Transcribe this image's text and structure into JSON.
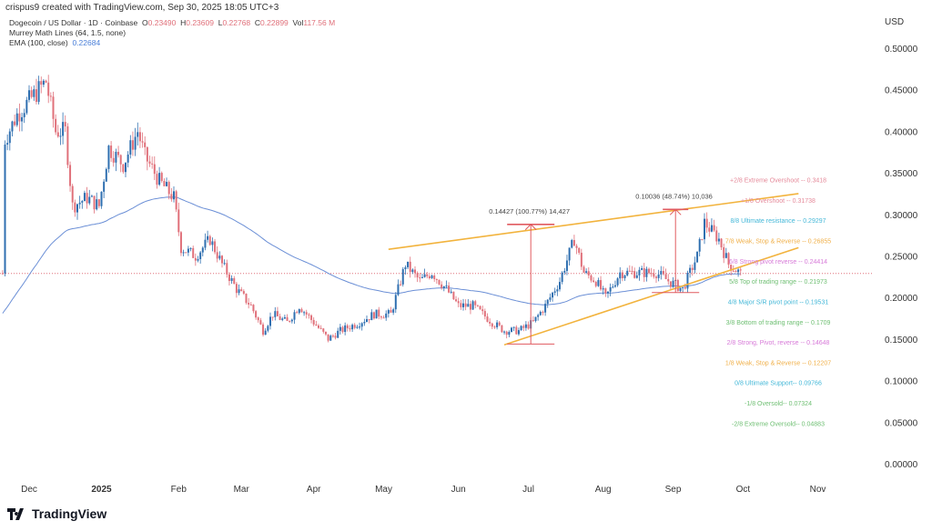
{
  "header": {
    "created": "crispus9 created with TradingView.com, Sep 30, 2025 18:05 UTC+3"
  },
  "legend": {
    "symbol": "Dogecoin / US Dollar · 1D · Coinbase",
    "o_label": "O",
    "o": "0.23490",
    "h_label": "H",
    "h": "0.23609",
    "l_label": "L",
    "l": "0.22768",
    "c_label": "C",
    "c": "0.22899",
    "vol_label": "Vol",
    "vol": "117.56 M",
    "murrey": "Murrey Math Lines (64, 1.5, none)",
    "ema_label": "EMA (100, close)",
    "ema": "0.22684"
  },
  "axis": {
    "currency": "USD"
  },
  "logo": "TradingView",
  "colors": {
    "up": "#2f6fb0",
    "down": "#e0707a",
    "ema": "#6b8fd6",
    "wedge": "#f2b33d",
    "measure": "#e05a5f"
  },
  "chart_data": {
    "type": "candlestick",
    "title": "Dogecoin / US Dollar · 1D · Coinbase",
    "ylim": [
      0,
      0.5
    ],
    "yticks": [
      "0.50000",
      "0.45000",
      "0.40000",
      "0.35000",
      "0.30000",
      "0.25000",
      "0.20000",
      "0.15000",
      "0.10000",
      "0.05000",
      "0.00000"
    ],
    "xticks": [
      {
        "label": "Dec",
        "day": 0
      },
      {
        "label": "2025",
        "day": 30,
        "bold": true
      },
      {
        "label": "Feb",
        "day": 62
      },
      {
        "label": "Mar",
        "day": 88
      },
      {
        "label": "Apr",
        "day": 118
      },
      {
        "label": "May",
        "day": 147
      },
      {
        "label": "Jun",
        "day": 178
      },
      {
        "label": "Jul",
        "day": 207
      },
      {
        "label": "Aug",
        "day": 238
      },
      {
        "label": "Sep",
        "day": 267
      },
      {
        "label": "Oct",
        "day": 296
      },
      {
        "label": "Nov",
        "day": 327
      }
    ],
    "x_unit": "days since 2024-12-01",
    "close_path": [
      [
        -10,
        0.39
      ],
      [
        -5,
        0.42
      ],
      [
        1,
        0.44
      ],
      [
        7,
        0.46
      ],
      [
        11,
        0.4
      ],
      [
        15,
        0.4
      ],
      [
        18,
        0.31
      ],
      [
        24,
        0.32
      ],
      [
        29,
        0.31
      ],
      [
        33,
        0.38
      ],
      [
        39,
        0.36
      ],
      [
        45,
        0.4
      ],
      [
        48,
        0.37
      ],
      [
        54,
        0.34
      ],
      [
        60,
        0.32
      ],
      [
        63,
        0.26
      ],
      [
        69,
        0.25
      ],
      [
        75,
        0.27
      ],
      [
        80,
        0.24
      ],
      [
        86,
        0.21
      ],
      [
        92,
        0.19
      ],
      [
        97,
        0.16
      ],
      [
        101,
        0.18
      ],
      [
        107,
        0.17
      ],
      [
        112,
        0.19
      ],
      [
        118,
        0.17
      ],
      [
        124,
        0.15
      ],
      [
        129,
        0.16
      ],
      [
        137,
        0.17
      ],
      [
        143,
        0.18
      ],
      [
        150,
        0.18
      ],
      [
        156,
        0.24
      ],
      [
        162,
        0.22
      ],
      [
        167,
        0.23
      ],
      [
        173,
        0.21
      ],
      [
        178,
        0.19
      ],
      [
        184,
        0.19
      ],
      [
        192,
        0.17
      ],
      [
        197,
        0.16
      ],
      [
        203,
        0.16
      ],
      [
        209,
        0.17
      ],
      [
        214,
        0.19
      ],
      [
        220,
        0.22
      ],
      [
        226,
        0.27
      ],
      [
        230,
        0.23
      ],
      [
        235,
        0.22
      ],
      [
        239,
        0.2
      ],
      [
        245,
        0.23
      ],
      [
        252,
        0.23
      ],
      [
        260,
        0.23
      ],
      [
        265,
        0.22
      ],
      [
        271,
        0.21
      ],
      [
        277,
        0.25
      ],
      [
        280,
        0.29
      ],
      [
        286,
        0.27
      ],
      [
        290,
        0.24
      ],
      [
        295,
        0.229
      ]
    ],
    "current_price": 0.229,
    "wedge": {
      "upper": [
        [
          149,
          0.258
        ],
        [
          319,
          0.325
        ]
      ],
      "lower": [
        [
          197,
          0.143
        ],
        [
          319,
          0.26
        ]
      ]
    },
    "measurements": [
      {
        "day": 208,
        "from": 0.144,
        "to": 0.288,
        "label": "0.14427 (100.77%) 14,427"
      },
      {
        "day": 268,
        "from": 0.206,
        "to": 0.306,
        "label": "0.10036 (48.74%) 10,036"
      }
    ],
    "murrey_levels": [
      {
        "label": "+2/8 Extreme Overshoot --  0.3418",
        "price": 0.3418,
        "color": "#e58a9a"
      },
      {
        "label": "+1/8 Overshoot --  0.31738",
        "price": 0.31738,
        "color": "#e58a9a"
      },
      {
        "label": "8/8 Ultimate resistance --  0.29297",
        "price": 0.29297,
        "color": "#45b8d8"
      },
      {
        "label": "7/8 Weak, Stop & Reverse --  0.26855",
        "price": 0.26855,
        "color": "#f0b04a"
      },
      {
        "label": "6/8 Strong pivot reverse --  0.24414",
        "price": 0.24414,
        "color": "#d77ad8"
      },
      {
        "label": "5/8 Top of trading range --  0.21973",
        "price": 0.21973,
        "color": "#6fbf73"
      },
      {
        "label": "4/8 Major S/R pivot point --  0.19531",
        "price": 0.19531,
        "color": "#45b8d8"
      },
      {
        "label": "3/8 Bottom of trading range --  0.1709",
        "price": 0.1709,
        "color": "#6fbf73"
      },
      {
        "label": "2/8 Strong, Pivot, reverse --  0.14648",
        "price": 0.14648,
        "color": "#d77ad8"
      },
      {
        "label": "1/8 Weak, Stop & Reverse --  0.12207",
        "price": 0.12207,
        "color": "#f0b04a"
      },
      {
        "label": "0/8 Ultimate Support--  0.09766",
        "price": 0.09766,
        "color": "#45b8d8"
      },
      {
        "label": "-1/8 Oversold--  0.07324",
        "price": 0.07324,
        "color": "#6fbf73"
      },
      {
        "label": "-2/8 Extreme Oversold--  0.04883",
        "price": 0.04883,
        "color": "#6fbf73"
      }
    ]
  }
}
